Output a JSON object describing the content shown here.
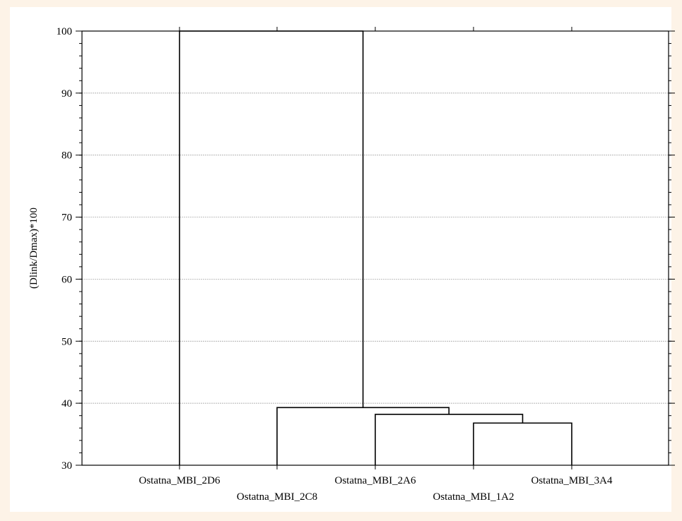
{
  "chart_data": {
    "type": "dendrogram",
    "title": "",
    "xlabel": "",
    "ylabel": "(Dlink/Dmax)*100",
    "ylim": [
      30,
      100
    ],
    "yticks": [
      30,
      40,
      50,
      60,
      70,
      80,
      90,
      100
    ],
    "grid": true,
    "leaves": [
      "Ostatna_MBI_2D6",
      "Ostatna_MBI_2C8",
      "Ostatna_MBI_2A6",
      "Ostatna_MBI_1A2",
      "Ostatna_MBI_3A4"
    ],
    "merges": [
      {
        "left": "Ostatna_MBI_1A2",
        "right": "Ostatna_MBI_3A4",
        "height": 36.8
      },
      {
        "left": "Ostatna_MBI_2A6",
        "right": "cluster(1A2,3A4)",
        "height": 38.2
      },
      {
        "left": "Ostatna_MBI_2C8",
        "right": "cluster(2A6,1A2,3A4)",
        "height": 39.3
      },
      {
        "left": "Ostatna_MBI_2D6",
        "right": "cluster(2C8,2A6,1A2,3A4)",
        "height": 100
      }
    ]
  }
}
